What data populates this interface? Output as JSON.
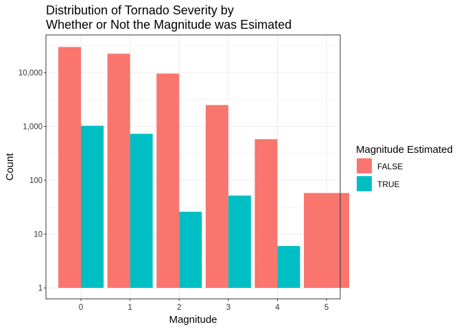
{
  "chart_data": {
    "type": "bar",
    "title": [
      "Distribution of Tornado Severity by",
      "Whether or Not the Magnitude was Esimated"
    ],
    "xlabel": "Magnitude",
    "ylabel": "Count",
    "y_scale": "log10",
    "ylim": [
      1,
      40000
    ],
    "yticks": [
      1,
      10,
      100,
      1000,
      10000
    ],
    "ytick_labels": [
      "1",
      "10",
      "100",
      "1,000",
      "10,000"
    ],
    "categories": [
      "0",
      "1",
      "2",
      "3",
      "4",
      "5"
    ],
    "legend_title": "Magnitude Estimated",
    "legend_position": "right",
    "grid": true,
    "series": [
      {
        "name": "FALSE",
        "color": "#F8766D",
        "values": [
          30000,
          22500,
          9600,
          2500,
          580,
          58
        ]
      },
      {
        "name": "TRUE",
        "color": "#00BFC4",
        "values": [
          1030,
          730,
          26,
          52,
          6,
          null
        ]
      }
    ]
  }
}
